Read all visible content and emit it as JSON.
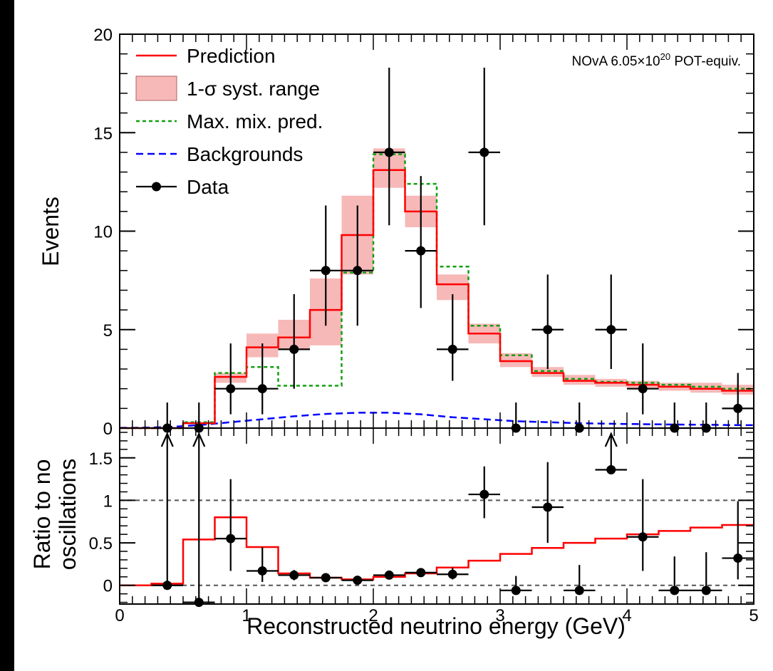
{
  "chart_data": [
    {
      "panel": "top",
      "type": "line",
      "xlabel": "",
      "ylabel": "Events",
      "xlim": [
        0,
        5
      ],
      "ylim": [
        0,
        20
      ],
      "x_ticks": [],
      "y_ticks": [
        "0",
        "5",
        "10",
        "15",
        "20"
      ],
      "y_tick_values": [
        0,
        5,
        10,
        15,
        20
      ],
      "annotation": {
        "prefix": "NOvA 6.05×10",
        "exponent": "20",
        "suffix": " POT-equiv."
      },
      "legend": {
        "placement": "top-left",
        "entries": [
          {
            "key": "prediction",
            "label": "Prediction"
          },
          {
            "key": "syst",
            "label": "1-σ syst. range"
          },
          {
            "key": "maxmix",
            "label": "Max. mix. pred."
          },
          {
            "key": "bkg",
            "label": "Backgrounds"
          },
          {
            "key": "data",
            "label": "Data"
          }
        ]
      },
      "bin_edges": [
        0,
        0.25,
        0.5,
        0.75,
        1.0,
        1.25,
        1.5,
        1.75,
        2.0,
        2.25,
        2.5,
        2.75,
        3.0,
        3.25,
        3.5,
        3.75,
        4.0,
        4.25,
        4.5,
        4.75,
        5.0
      ],
      "series": [
        {
          "key": "syst",
          "name": "1-σ syst. range",
          "low": [
            0,
            0,
            0.2,
            2.3,
            3.6,
            4.0,
            4.2,
            7.8,
            12.2,
            10.2,
            6.5,
            4.3,
            3.1,
            2.6,
            2.2,
            2.1,
            2.0,
            1.9,
            1.8,
            1.7
          ],
          "high": [
            0,
            0,
            0.3,
            2.8,
            4.8,
            5.5,
            7.6,
            11.8,
            14.2,
            11.8,
            7.8,
            5.3,
            3.8,
            3.1,
            2.7,
            2.5,
            2.4,
            2.3,
            2.3,
            2.2
          ]
        },
        {
          "key": "prediction",
          "name": "Prediction",
          "values": [
            0,
            0,
            0.25,
            2.6,
            4.1,
            4.6,
            6.0,
            9.8,
            13.1,
            11.0,
            7.3,
            4.8,
            3.4,
            2.8,
            2.4,
            2.3,
            2.2,
            2.1,
            2.0,
            1.9
          ]
        },
        {
          "key": "maxmix",
          "name": "Max. mix. pred.",
          "values": [
            0,
            0,
            0.3,
            2.8,
            3.1,
            2.15,
            2.15,
            7.9,
            13.9,
            12.4,
            8.2,
            5.2,
            3.7,
            2.9,
            2.5,
            2.35,
            2.3,
            2.2,
            2.1,
            2.0
          ]
        },
        {
          "key": "bkg",
          "name": "Backgrounds",
          "values": [
            0.02,
            0.05,
            0.15,
            0.3,
            0.45,
            0.6,
            0.72,
            0.78,
            0.78,
            0.7,
            0.55,
            0.45,
            0.35,
            0.3,
            0.25,
            0.22,
            0.2,
            0.18,
            0.17,
            0.15
          ]
        }
      ],
      "data_points": [
        {
          "x": 0.375,
          "y": 0,
          "yerr_low": 0,
          "yerr_high": 1.3
        },
        {
          "x": 0.625,
          "y": 0,
          "yerr_low": 0,
          "yerr_high": 1.3
        },
        {
          "x": 0.875,
          "y": 2,
          "yerr_low": 1.3,
          "yerr_high": 2.3
        },
        {
          "x": 1.125,
          "y": 2,
          "yerr_low": 1.3,
          "yerr_high": 2.3
        },
        {
          "x": 1.375,
          "y": 4,
          "yerr_low": 2.0,
          "yerr_high": 2.8
        },
        {
          "x": 1.625,
          "y": 8,
          "yerr_low": 2.8,
          "yerr_high": 3.3
        },
        {
          "x": 1.875,
          "y": 8,
          "yerr_low": 2.8,
          "yerr_high": 3.3
        },
        {
          "x": 2.125,
          "y": 14,
          "yerr_low": 3.7,
          "yerr_high": 4.3
        },
        {
          "x": 2.375,
          "y": 9,
          "yerr_low": 2.9,
          "yerr_high": 3.8
        },
        {
          "x": 2.625,
          "y": 4,
          "yerr_low": 1.6,
          "yerr_high": 2.8
        },
        {
          "x": 2.875,
          "y": 14,
          "yerr_low": 3.7,
          "yerr_high": 4.3
        },
        {
          "x": 3.125,
          "y": 0,
          "yerr_low": 0,
          "yerr_high": 1.3
        },
        {
          "x": 3.375,
          "y": 5,
          "yerr_low": 2.0,
          "yerr_high": 2.8
        },
        {
          "x": 3.625,
          "y": 0,
          "yerr_low": 0,
          "yerr_high": 1.3
        },
        {
          "x": 3.875,
          "y": 5,
          "yerr_low": 2.0,
          "yerr_high": 2.8
        },
        {
          "x": 4.125,
          "y": 2,
          "yerr_low": 1.3,
          "yerr_high": 2.3
        },
        {
          "x": 4.375,
          "y": 0,
          "yerr_low": 0,
          "yerr_high": 1.3
        },
        {
          "x": 4.625,
          "y": 0,
          "yerr_low": 0,
          "yerr_high": 1.3
        },
        {
          "x": 4.875,
          "y": 1,
          "yerr_low": 0.8,
          "yerr_high": 1.8
        }
      ],
      "data_xerr": 0.125,
      "colors": {
        "prediction": "#ff0000",
        "syst": "#f7b8b8",
        "maxmix": "#11a011",
        "bkg": "#0000ff",
        "data": "#000000"
      }
    },
    {
      "panel": "bottom",
      "type": "line",
      "xlabel": "Reconstructed neutrino energy (GeV)",
      "ylabel_lines": [
        "Ratio to no",
        "oscillations"
      ],
      "xlim": [
        0,
        5
      ],
      "ylim": [
        -0.22,
        1.85
      ],
      "x_ticks": [
        "0",
        "1",
        "2",
        "3",
        "4",
        "5"
      ],
      "x_tick_values": [
        0,
        1,
        2,
        3,
        4,
        5
      ],
      "y_ticks": [
        "0",
        "0.5",
        "1",
        "1.5"
      ],
      "y_tick_values": [
        0,
        0.5,
        1,
        1.5
      ],
      "reference_lines": [
        0,
        1
      ],
      "bin_edges": [
        0,
        0.25,
        0.5,
        0.75,
        1.0,
        1.25,
        1.5,
        1.75,
        2.0,
        2.25,
        2.5,
        2.75,
        3.0,
        3.25,
        3.5,
        3.75,
        4.0,
        4.25,
        4.5,
        4.75,
        5.0
      ],
      "series": [
        {
          "key": "ratio_pred",
          "name": "Prediction",
          "values": [
            0,
            0.02,
            0.54,
            0.8,
            0.45,
            0.14,
            0.09,
            0.07,
            0.1,
            0.14,
            0.21,
            0.29,
            0.37,
            0.44,
            0.5,
            0.55,
            0.6,
            0.64,
            0.68,
            0.71
          ]
        }
      ],
      "data_points": [
        {
          "x": 0.375,
          "y": 0.0,
          "yerr_low": 0,
          "yerr_high": 0,
          "arrow_up": true
        },
        {
          "x": 0.625,
          "y": -0.2,
          "yerr_low": 0,
          "yerr_high": 0,
          "arrow_up": true
        },
        {
          "x": 0.875,
          "y": 0.55,
          "yerr_low": 0.38,
          "yerr_high": 0.7
        },
        {
          "x": 1.125,
          "y": 0.17,
          "yerr_low": 0.13,
          "yerr_high": 0.28
        },
        {
          "x": 1.375,
          "y": 0.12,
          "yerr_low": 0.06,
          "yerr_high": 0.06
        },
        {
          "x": 1.625,
          "y": 0.09,
          "yerr_low": 0.03,
          "yerr_high": 0.03
        },
        {
          "x": 1.875,
          "y": 0.06,
          "yerr_low": 0.03,
          "yerr_high": 0.03
        },
        {
          "x": 2.125,
          "y": 0.12,
          "yerr_low": 0.03,
          "yerr_high": 0.03
        },
        {
          "x": 2.375,
          "y": 0.15,
          "yerr_low": 0.05,
          "yerr_high": 0.05
        },
        {
          "x": 2.625,
          "y": 0.13,
          "yerr_low": 0.06,
          "yerr_high": 0.08
        },
        {
          "x": 2.875,
          "y": 1.07,
          "yerr_low": 0.28,
          "yerr_high": 0.33
        },
        {
          "x": 3.125,
          "y": -0.06,
          "yerr_low": 0,
          "yerr_high": 0.17
        },
        {
          "x": 3.375,
          "y": 0.92,
          "yerr_low": 0.42,
          "yerr_high": 0.53
        },
        {
          "x": 3.625,
          "y": -0.06,
          "yerr_low": 0,
          "yerr_high": 0.3
        },
        {
          "x": 3.875,
          "y": 1.36,
          "yerr_low": 0,
          "yerr_high": 0,
          "arrow_up": true
        },
        {
          "x": 4.125,
          "y": 0.57,
          "yerr_low": 0.4,
          "yerr_high": 0.68
        },
        {
          "x": 4.375,
          "y": -0.06,
          "yerr_low": 0,
          "yerr_high": 0.4
        },
        {
          "x": 4.625,
          "y": -0.06,
          "yerr_low": 0,
          "yerr_high": 0.45
        },
        {
          "x": 4.875,
          "y": 0.32,
          "yerr_low": 0.25,
          "yerr_high": 0.67
        }
      ],
      "data_xerr": 0.125,
      "colors": {
        "ratio_pred": "#ff0000",
        "data": "#000000",
        "reference": "#555555"
      }
    }
  ]
}
